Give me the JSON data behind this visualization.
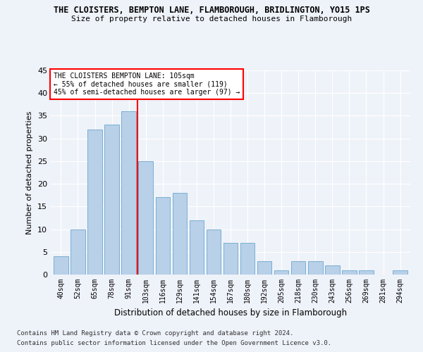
{
  "title1": "THE CLOISTERS, BEMPTON LANE, FLAMBOROUGH, BRIDLINGTON, YO15 1PS",
  "title2": "Size of property relative to detached houses in Flamborough",
  "xlabel": "Distribution of detached houses by size in Flamborough",
  "ylabel": "Number of detached properties",
  "categories": [
    "40sqm",
    "52sqm",
    "65sqm",
    "78sqm",
    "91sqm",
    "103sqm",
    "116sqm",
    "129sqm",
    "141sqm",
    "154sqm",
    "167sqm",
    "180sqm",
    "192sqm",
    "205sqm",
    "218sqm",
    "230sqm",
    "243sqm",
    "256sqm",
    "269sqm",
    "281sqm",
    "294sqm"
  ],
  "values": [
    4,
    10,
    32,
    33,
    36,
    25,
    17,
    18,
    12,
    10,
    7,
    7,
    3,
    1,
    3,
    3,
    2,
    1,
    1,
    0,
    1
  ],
  "bar_color": "#b8d0e8",
  "bar_edge_color": "#7aafd4",
  "red_line_x": 4.5,
  "ylim": [
    0,
    45
  ],
  "yticks": [
    0,
    5,
    10,
    15,
    20,
    25,
    30,
    35,
    40,
    45
  ],
  "annotation_line1": "THE CLOISTERS BEMPTON LANE: 105sqm",
  "annotation_line2": "← 55% of detached houses are smaller (119)",
  "annotation_line3": "45% of semi-detached houses are larger (97) →",
  "footer1": "Contains HM Land Registry data © Crown copyright and database right 2024.",
  "footer2": "Contains public sector information licensed under the Open Government Licence v3.0.",
  "bg_color": "#eef2f9"
}
